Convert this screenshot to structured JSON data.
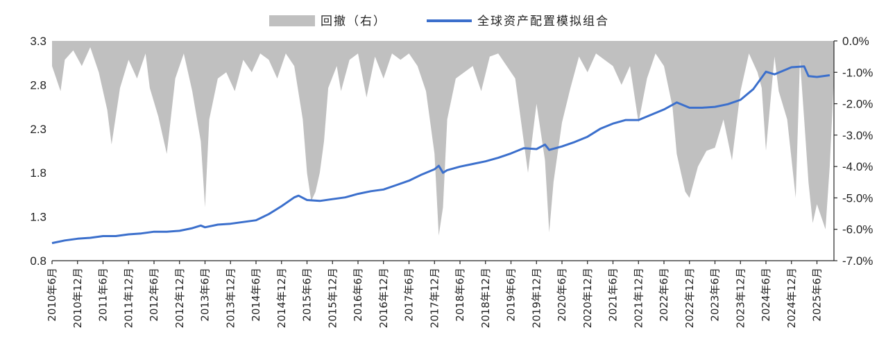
{
  "chart_data": {
    "type": "area+line",
    "title": "",
    "legend": {
      "placement": "top-center",
      "items": [
        {
          "label": "回撤（右）",
          "type": "area",
          "color": "#c0c0c0"
        },
        {
          "label": "全球资产配置模拟组合",
          "type": "line",
          "color": "#3b6fcc"
        }
      ]
    },
    "y_left": {
      "min": 0.8,
      "max": 3.3,
      "ticks": [
        "3.3",
        "2.8",
        "2.3",
        "1.8",
        "1.3",
        "0.8"
      ],
      "tick_values": [
        3.3,
        2.8,
        2.3,
        1.8,
        1.3,
        0.8
      ]
    },
    "y_right": {
      "min": -7.0,
      "max": 0.0,
      "unit": "%",
      "ticks": [
        "0.0%",
        "-1.0%",
        "-2.0%",
        "-3.0%",
        "-4.0%",
        "-5.0%",
        "-6.0%",
        "-7.0%"
      ],
      "tick_values": [
        0,
        -1,
        -2,
        -3,
        -4,
        -5,
        -6,
        -7
      ]
    },
    "x_axis": {
      "start": "2010-06",
      "end": "2025-10",
      "ticks": [
        "2010年6月",
        "2010年12月",
        "2011年6月",
        "2011年12月",
        "2012年6月",
        "2012年12月",
        "2013年6月",
        "2013年12月",
        "2014年6月",
        "2014年12月",
        "2015年6月",
        "2015年12月",
        "2016年6月",
        "2016年12月",
        "2017年6月",
        "2017年12月",
        "2018年6月",
        "2018年12月",
        "2019年6月",
        "2019年12月",
        "2020年6月",
        "2020年12月",
        "2021年6月",
        "2021年12月",
        "2022年6月",
        "2022年12月",
        "2023年6月",
        "2023年12月",
        "2024年6月",
        "2024年12月",
        "2025年6月"
      ],
      "tick_dates": [
        "2010-06",
        "2010-12",
        "2011-06",
        "2011-12",
        "2012-06",
        "2012-12",
        "2013-06",
        "2013-12",
        "2014-06",
        "2014-12",
        "2015-06",
        "2015-12",
        "2016-06",
        "2016-12",
        "2017-06",
        "2017-12",
        "2018-06",
        "2018-12",
        "2019-06",
        "2019-12",
        "2020-06",
        "2020-12",
        "2021-06",
        "2021-12",
        "2022-06",
        "2022-12",
        "2023-06",
        "2023-12",
        "2024-06",
        "2024-12",
        "2025-06"
      ]
    },
    "series": [
      {
        "name": "全球资产配置模拟组合",
        "axis": "left",
        "x": [
          "2010-06",
          "2010-09",
          "2010-12",
          "2011-03",
          "2011-06",
          "2011-09",
          "2011-12",
          "2012-03",
          "2012-06",
          "2012-09",
          "2012-12",
          "2013-03",
          "2013-05",
          "2013-06",
          "2013-09",
          "2013-12",
          "2014-03",
          "2014-06",
          "2014-09",
          "2014-12",
          "2015-03",
          "2015-04",
          "2015-06",
          "2015-09",
          "2015-12",
          "2016-03",
          "2016-06",
          "2016-09",
          "2016-12",
          "2017-03",
          "2017-06",
          "2017-09",
          "2017-12",
          "2018-01",
          "2018-02",
          "2018-03",
          "2018-06",
          "2018-09",
          "2018-12",
          "2019-03",
          "2019-06",
          "2019-09",
          "2019-12",
          "2020-02",
          "2020-03",
          "2020-06",
          "2020-09",
          "2020-12",
          "2021-03",
          "2021-06",
          "2021-09",
          "2021-12",
          "2022-03",
          "2022-06",
          "2022-09",
          "2022-12",
          "2023-03",
          "2023-06",
          "2023-09",
          "2023-12",
          "2024-03",
          "2024-06",
          "2024-08",
          "2024-12",
          "2025-03",
          "2025-04",
          "2025-06",
          "2025-09"
        ],
        "y": [
          1.0,
          1.03,
          1.05,
          1.06,
          1.08,
          1.08,
          1.1,
          1.11,
          1.13,
          1.13,
          1.14,
          1.17,
          1.2,
          1.18,
          1.21,
          1.22,
          1.24,
          1.26,
          1.33,
          1.42,
          1.52,
          1.54,
          1.49,
          1.48,
          1.5,
          1.52,
          1.56,
          1.59,
          1.61,
          1.66,
          1.71,
          1.78,
          1.84,
          1.88,
          1.8,
          1.83,
          1.87,
          1.9,
          1.93,
          1.97,
          2.02,
          2.08,
          2.07,
          2.12,
          2.06,
          2.1,
          2.15,
          2.21,
          2.3,
          2.36,
          2.4,
          2.4,
          2.46,
          2.52,
          2.6,
          2.54,
          2.54,
          2.55,
          2.58,
          2.63,
          2.75,
          2.95,
          2.92,
          3.0,
          3.01,
          2.9,
          2.89,
          2.91
        ]
      },
      {
        "name": "回撤（右）",
        "axis": "right",
        "unit": "%",
        "x": [
          "2010-06",
          "2010-08",
          "2010-09",
          "2010-11",
          "2011-01",
          "2011-03",
          "2011-05",
          "2011-07",
          "2011-08",
          "2011-10",
          "2011-12",
          "2012-02",
          "2012-04",
          "2012-05",
          "2012-07",
          "2012-09",
          "2012-11",
          "2013-01",
          "2013-03",
          "2013-05",
          "2013-06",
          "2013-07",
          "2013-09",
          "2013-11",
          "2014-01",
          "2014-03",
          "2014-05",
          "2014-07",
          "2014-09",
          "2014-11",
          "2015-01",
          "2015-03",
          "2015-05",
          "2015-06",
          "2015-07",
          "2015-08",
          "2015-09",
          "2015-10",
          "2015-11",
          "2016-01",
          "2016-02",
          "2016-04",
          "2016-06",
          "2016-08",
          "2016-10",
          "2016-12",
          "2017-02",
          "2017-04",
          "2017-06",
          "2017-08",
          "2017-10",
          "2017-12",
          "2018-01",
          "2018-02",
          "2018-03",
          "2018-05",
          "2018-07",
          "2018-09",
          "2018-11",
          "2019-01",
          "2019-03",
          "2019-05",
          "2019-07",
          "2019-09",
          "2019-10",
          "2019-12",
          "2020-02",
          "2020-03",
          "2020-04",
          "2020-06",
          "2020-08",
          "2020-10",
          "2020-12",
          "2021-02",
          "2021-04",
          "2021-06",
          "2021-08",
          "2021-10",
          "2021-12",
          "2022-02",
          "2022-04",
          "2022-06",
          "2022-08",
          "2022-09",
          "2022-10",
          "2022-11",
          "2022-12",
          "2023-02",
          "2023-04",
          "2023-06",
          "2023-08",
          "2023-10",
          "2023-12",
          "2024-02",
          "2024-04",
          "2024-05",
          "2024-06",
          "2024-08",
          "2024-09",
          "2024-11",
          "2025-01",
          "2025-02",
          "2025-03",
          "2025-04",
          "2025-05",
          "2025-06",
          "2025-08",
          "2025-09",
          "2025-10"
        ],
        "y": [
          -0.8,
          -1.6,
          -0.6,
          -0.3,
          -0.8,
          -0.2,
          -1.0,
          -2.2,
          -3.3,
          -1.5,
          -0.6,
          -1.2,
          -0.4,
          -1.5,
          -2.4,
          -3.6,
          -1.2,
          -0.4,
          -1.6,
          -3.2,
          -5.3,
          -2.5,
          -1.2,
          -1.0,
          -1.6,
          -0.6,
          -1.0,
          -0.4,
          -0.6,
          -1.2,
          -0.4,
          -0.8,
          -2.5,
          -4.2,
          -5.1,
          -4.8,
          -4.2,
          -3.2,
          -1.5,
          -0.8,
          -1.6,
          -0.6,
          -0.4,
          -1.8,
          -0.5,
          -1.2,
          -0.4,
          -0.6,
          -0.4,
          -0.8,
          -1.6,
          -3.6,
          -6.2,
          -5.3,
          -2.5,
          -1.2,
          -1.0,
          -0.8,
          -1.6,
          -0.5,
          -0.4,
          -0.8,
          -1.2,
          -3.2,
          -4.2,
          -2.0,
          -3.8,
          -6.1,
          -4.5,
          -2.6,
          -1.5,
          -0.5,
          -1.0,
          -0.4,
          -0.6,
          -0.8,
          -1.4,
          -0.8,
          -2.6,
          -1.2,
          -0.4,
          -0.8,
          -2.1,
          -3.6,
          -4.2,
          -4.8,
          -5.0,
          -4.0,
          -3.5,
          -3.4,
          -2.5,
          -3.8,
          -1.6,
          -0.4,
          -1.0,
          -1.5,
          -3.5,
          -0.5,
          -1.6,
          -2.5,
          -5.0,
          -0.6,
          -2.5,
          -4.5,
          -5.8,
          -5.2,
          -6.0,
          -4.0,
          -1.2
        ]
      }
    ]
  }
}
